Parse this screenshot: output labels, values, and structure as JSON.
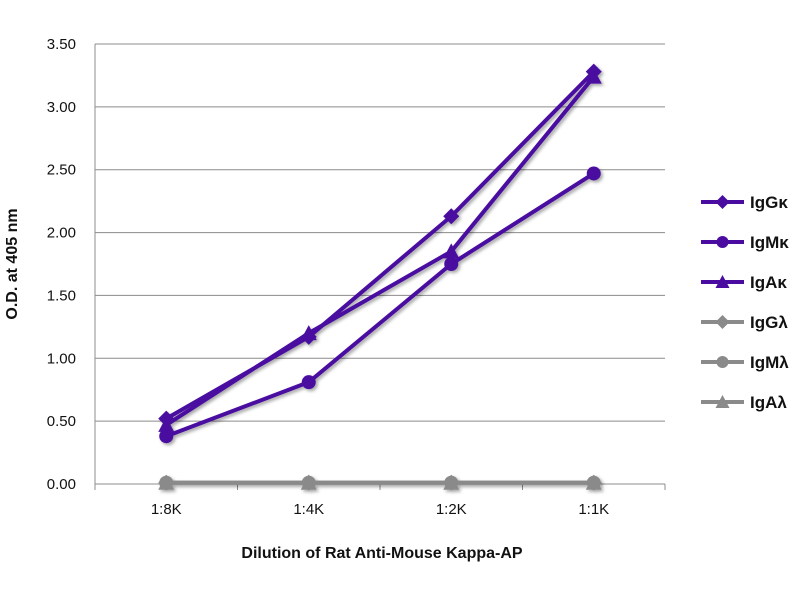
{
  "chart_data": {
    "type": "line",
    "title": "",
    "xlabel": "Dilution of Rat Anti-Mouse Kappa-AP",
    "ylabel": "O.D. at 405 nm",
    "categories": [
      "1:8K",
      "1:4K",
      "1:2K",
      "1:1K"
    ],
    "ylim": [
      0,
      3.5
    ],
    "yticks": [
      "0.00",
      "0.50",
      "1.00",
      "1.50",
      "2.00",
      "2.50",
      "3.00",
      "3.50"
    ],
    "grid": true,
    "legend_position": "right",
    "series": [
      {
        "name": "IgGκ",
        "marker": "diamond",
        "color": "#4a0ca0",
        "values": [
          0.52,
          1.17,
          2.13,
          3.28
        ]
      },
      {
        "name": "IgMκ",
        "marker": "circle",
        "color": "#4a0ca0",
        "values": [
          0.38,
          0.81,
          1.75,
          2.47
        ]
      },
      {
        "name": "IgAκ",
        "marker": "triangle",
        "color": "#4a0ca0",
        "values": [
          0.47,
          1.2,
          1.85,
          3.24
        ]
      },
      {
        "name": "IgGλ",
        "marker": "diamond",
        "color": "#8a8a8a",
        "values": [
          0.01,
          0.01,
          0.01,
          0.01
        ]
      },
      {
        "name": "IgMλ",
        "marker": "circle",
        "color": "#8a8a8a",
        "values": [
          0.01,
          0.01,
          0.01,
          0.01
        ]
      },
      {
        "name": "IgAλ",
        "marker": "triangle",
        "color": "#8a8a8a",
        "values": [
          0.01,
          0.01,
          0.01,
          0.01
        ]
      }
    ]
  }
}
